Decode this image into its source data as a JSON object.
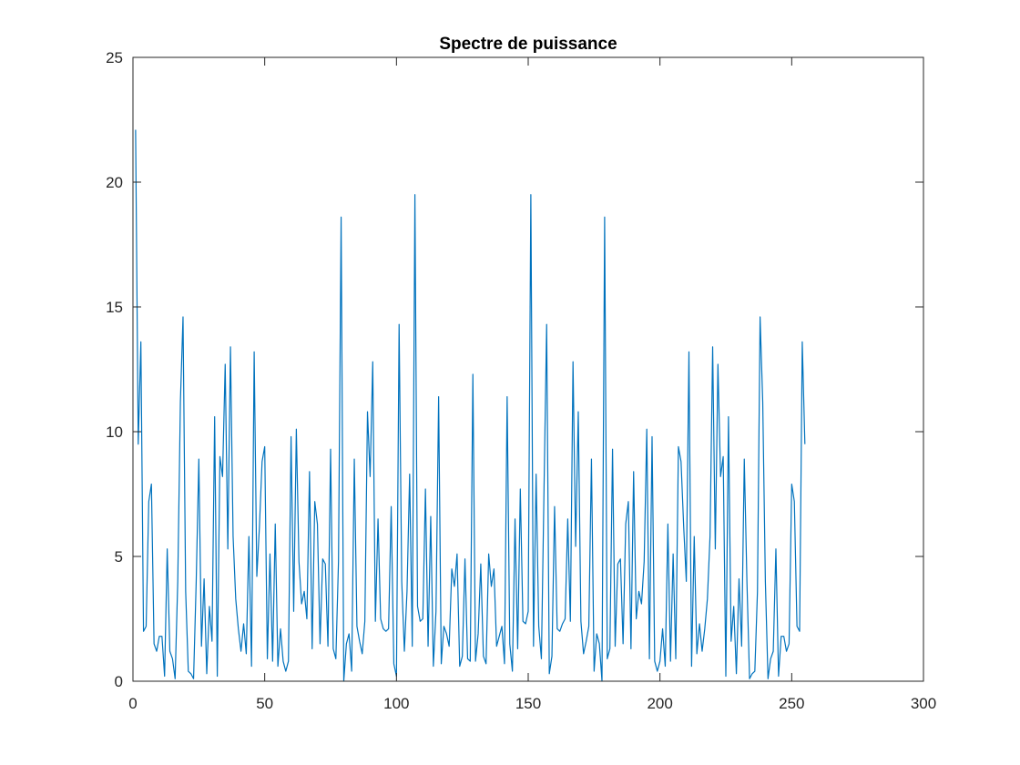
{
  "chart_data": {
    "type": "line",
    "title": "Spectre de puissance",
    "xlabel": "",
    "ylabel": "",
    "xlim": [
      0,
      300
    ],
    "ylim": [
      0,
      25
    ],
    "xticks": [
      0,
      50,
      100,
      150,
      200,
      250,
      300
    ],
    "yticks": [
      0,
      5,
      10,
      15,
      20,
      25
    ],
    "xtick_labels": [
      "0",
      "50",
      "100",
      "150",
      "200",
      "250",
      "300"
    ],
    "ytick_labels": [
      "0",
      "5",
      "10",
      "15",
      "20",
      "25"
    ],
    "grid": false,
    "line_color": "#0072BD",
    "series": [
      {
        "x_start": 1,
        "x_step": 1,
        "values": [
          22.1,
          9.5,
          13.6,
          2.0,
          2.2,
          7.2,
          7.9,
          1.5,
          1.2,
          1.8,
          1.8,
          0.2,
          5.3,
          1.2,
          0.9,
          0.1,
          4.0,
          11.2,
          14.6,
          3.6,
          0.4,
          0.3,
          0.1,
          4.0,
          8.9,
          1.4,
          4.1,
          0.3,
          3.0,
          1.6,
          10.6,
          0.2,
          9.0,
          8.2,
          12.7,
          5.3,
          13.4,
          5.8,
          3.3,
          2.1,
          1.2,
          2.3,
          1.1,
          5.8,
          0.6,
          13.2,
          4.2,
          6.2,
          8.8,
          9.4,
          0.9,
          5.1,
          0.8,
          6.3,
          0.6,
          2.1,
          0.8,
          0.4,
          0.8,
          9.8,
          2.8,
          10.1,
          4.8,
          3.1,
          3.6,
          2.5,
          8.4,
          1.3,
          7.2,
          6.3,
          1.5,
          4.9,
          4.7,
          1.4,
          9.3,
          1.3,
          0.9,
          4.8,
          18.6,
          0.0,
          1.5,
          1.9,
          0.4,
          8.9,
          2.2,
          1.6,
          1.1,
          2.4,
          10.8,
          8.2,
          12.8,
          2.4,
          6.5,
          2.5,
          2.1,
          2.0,
          2.1,
          7.0,
          0.7,
          0.2,
          14.3,
          4.0,
          1.2,
          3.6,
          8.3,
          1.4,
          19.5,
          3.0,
          2.4,
          2.5,
          7.7,
          1.4,
          6.6,
          0.6,
          2.8,
          11.4,
          0.7,
          2.2,
          1.9,
          1.4,
          4.5,
          3.8,
          5.1,
          0.6,
          1.0,
          4.9,
          0.9,
          0.8,
          12.3,
          0.8,
          1.9,
          4.7,
          1.0,
          0.7,
          5.1,
          3.8,
          4.5,
          1.4,
          1.8,
          2.2,
          0.7,
          11.4,
          1.5,
          0.4,
          6.5,
          1.3,
          7.7,
          2.4,
          2.3,
          2.8,
          19.5,
          1.4,
          8.3,
          2.2,
          0.9,
          7.7,
          14.3,
          0.3,
          1.0,
          7.0,
          2.1,
          2.0,
          2.3,
          2.5,
          6.5,
          2.4,
          12.8,
          5.4,
          10.8,
          2.4,
          1.1,
          1.6,
          2.2,
          8.9,
          0.4,
          1.9,
          1.5,
          0.0,
          18.6,
          0.9,
          1.3,
          9.3,
          1.4,
          4.7,
          4.9,
          1.5,
          6.3,
          7.2,
          1.3,
          8.4,
          2.5,
          3.6,
          3.1,
          4.8,
          10.1,
          0.9,
          9.8,
          0.8,
          0.4,
          0.8,
          2.1,
          0.6,
          6.3,
          0.8,
          5.1,
          0.9,
          9.4,
          8.8,
          6.2,
          4.0,
          13.2,
          0.6,
          5.8,
          1.1,
          2.3,
          1.2,
          2.1,
          3.3,
          5.8,
          13.4,
          5.3,
          12.7,
          8.2,
          9.0,
          0.2,
          10.6,
          1.6,
          3.0,
          0.3,
          4.1,
          1.4,
          8.9,
          4.0,
          0.1,
          0.3,
          0.4,
          3.6,
          14.6,
          11.2,
          4.0,
          0.1,
          0.9,
          1.2,
          5.3,
          0.2,
          1.8,
          1.8,
          1.2,
          1.5,
          7.9,
          7.2,
          2.2,
          2.0,
          13.6,
          9.5
        ]
      }
    ]
  }
}
